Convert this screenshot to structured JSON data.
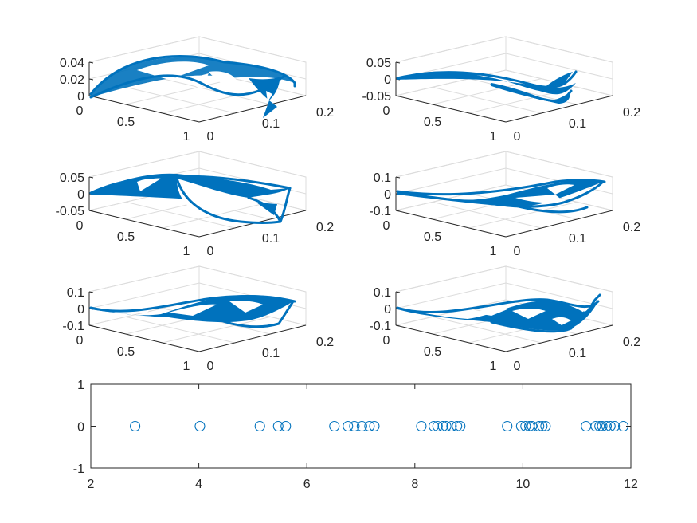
{
  "chart_data": [
    {
      "type": "surface3d",
      "panel": "top-left",
      "zticks": [
        "0.04",
        "0.02",
        "0"
      ],
      "xticks": [
        "0",
        "0.5",
        "1"
      ],
      "yticks": [
        "0",
        "0.1",
        "0.2"
      ],
      "xlim": [
        0,
        1
      ],
      "ylim": [
        0,
        0.2
      ],
      "zlim": [
        0,
        0.04
      ],
      "color": "#0072BD"
    },
    {
      "type": "surface3d",
      "panel": "top-right",
      "zticks": [
        "0.05",
        "0",
        "-0.05"
      ],
      "xticks": [
        "0",
        "0.5",
        "1"
      ],
      "yticks": [
        "0",
        "0.1",
        "0.2"
      ],
      "xlim": [
        0,
        1
      ],
      "ylim": [
        0,
        0.2
      ],
      "zlim": [
        -0.05,
        0.05
      ],
      "color": "#0072BD"
    },
    {
      "type": "surface3d",
      "panel": "middle-left",
      "zticks": [
        "0.05",
        "0",
        "-0.05"
      ],
      "xticks": [
        "0",
        "0.5",
        "1"
      ],
      "yticks": [
        "0",
        "0.1",
        "0.2"
      ],
      "xlim": [
        0,
        1
      ],
      "ylim": [
        0,
        0.2
      ],
      "zlim": [
        -0.05,
        0.05
      ],
      "color": "#0072BD"
    },
    {
      "type": "surface3d",
      "panel": "middle-right",
      "zticks": [
        "0.1",
        "0",
        "-0.1"
      ],
      "xticks": [
        "0",
        "0.5",
        "1"
      ],
      "yticks": [
        "0",
        "0.1",
        "0.2"
      ],
      "xlim": [
        0,
        1
      ],
      "ylim": [
        0,
        0.2
      ],
      "zlim": [
        -0.1,
        0.1
      ],
      "color": "#0072BD"
    },
    {
      "type": "surface3d",
      "panel": "lower-left",
      "zticks": [
        "0.1",
        "0",
        "-0.1"
      ],
      "xticks": [
        "0",
        "0.5",
        "1"
      ],
      "yticks": [
        "0",
        "0.1",
        "0.2"
      ],
      "xlim": [
        0,
        1
      ],
      "ylim": [
        0,
        0.2
      ],
      "zlim": [
        -0.1,
        0.1
      ],
      "color": "#0072BD"
    },
    {
      "type": "surface3d",
      "panel": "lower-right",
      "zticks": [
        "0.1",
        "0",
        "-0.1"
      ],
      "xticks": [
        "0",
        "0.5",
        "1"
      ],
      "yticks": [
        "0",
        "0.1",
        "0.2"
      ],
      "xlim": [
        0,
        1
      ],
      "ylim": [
        0,
        0.2
      ],
      "zlim": [
        -0.1,
        0.1
      ],
      "color": "#0072BD"
    },
    {
      "type": "scatter",
      "panel": "bottom",
      "marker": "open-circle",
      "color": "#0072BD",
      "xlim": [
        2,
        12
      ],
      "ylim": [
        -1,
        1
      ],
      "xticks": [
        "2",
        "4",
        "6",
        "8",
        "10",
        "12"
      ],
      "yticks": [
        "1",
        "0",
        "-1"
      ],
      "x": [
        2.82,
        4.02,
        5.13,
        5.47,
        5.61,
        6.51,
        6.76,
        6.88,
        7.02,
        7.16,
        7.25,
        8.12,
        8.35,
        8.42,
        8.52,
        8.58,
        8.68,
        8.78,
        8.84,
        9.71,
        9.97,
        10.05,
        10.12,
        10.17,
        10.3,
        10.36,
        10.42,
        11.17,
        11.35,
        11.42,
        11.47,
        11.55,
        11.62,
        11.7,
        11.86
      ],
      "y": [
        0,
        0,
        0,
        0,
        0,
        0,
        0,
        0,
        0,
        0,
        0,
        0,
        0,
        0,
        0,
        0,
        0,
        0,
        0,
        0,
        0,
        0,
        0,
        0,
        0,
        0,
        0,
        0,
        0,
        0,
        0,
        0,
        0,
        0,
        0
      ]
    }
  ]
}
